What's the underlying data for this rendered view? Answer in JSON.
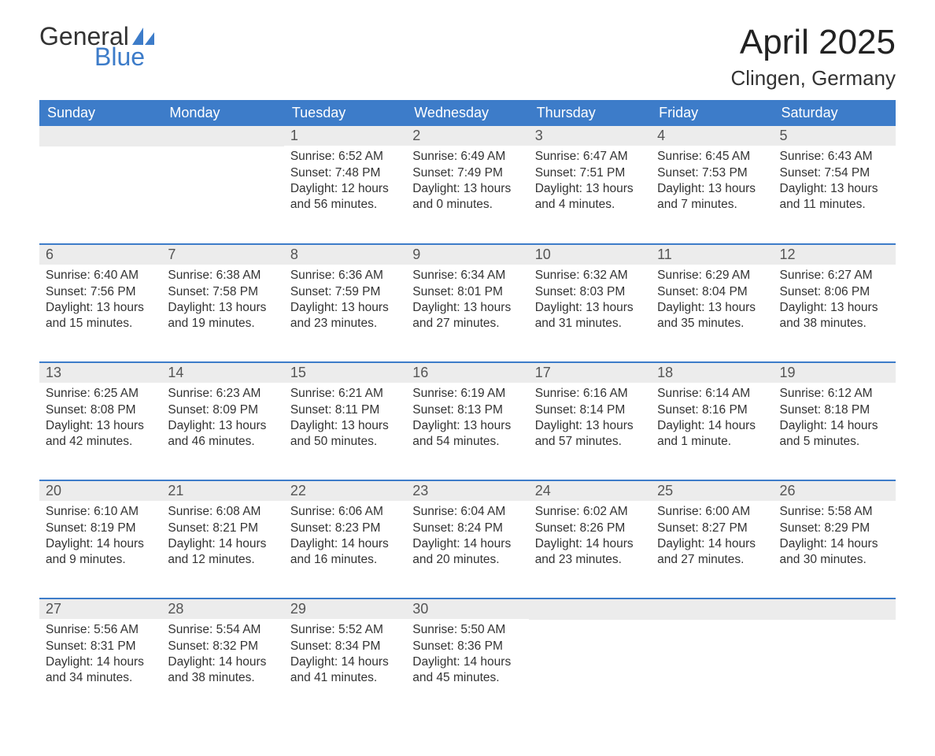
{
  "colors": {
    "header_bg": "#3d7cc9",
    "header_text": "#ffffff",
    "daynum_bg": "#ececec",
    "daynum_text": "#555555",
    "row_border": "#3d7cc9",
    "body_text": "#333333",
    "logo_dark": "#333333",
    "logo_blue": "#3d7cc9",
    "page_bg": "#ffffff"
  },
  "typography": {
    "title_fontsize": 44,
    "location_fontsize": 26,
    "header_fontsize": 18,
    "daynum_fontsize": 18,
    "body_fontsize": 15.5,
    "font_family": "Arial, Helvetica, sans-serif"
  },
  "logo": {
    "line1": "General",
    "line2": "Blue"
  },
  "title": "April 2025",
  "location": "Clingen, Germany",
  "weekdays": [
    "Sunday",
    "Monday",
    "Tuesday",
    "Wednesday",
    "Thursday",
    "Friday",
    "Saturday"
  ],
  "layout": {
    "columns": 7,
    "rows": 5,
    "leading_blanks": 2,
    "trailing_blanks": 3
  },
  "days": [
    {
      "n": 1,
      "sunrise": "6:52 AM",
      "sunset": "7:48 PM",
      "daylight": "12 hours and 56 minutes."
    },
    {
      "n": 2,
      "sunrise": "6:49 AM",
      "sunset": "7:49 PM",
      "daylight": "13 hours and 0 minutes."
    },
    {
      "n": 3,
      "sunrise": "6:47 AM",
      "sunset": "7:51 PM",
      "daylight": "13 hours and 4 minutes."
    },
    {
      "n": 4,
      "sunrise": "6:45 AM",
      "sunset": "7:53 PM",
      "daylight": "13 hours and 7 minutes."
    },
    {
      "n": 5,
      "sunrise": "6:43 AM",
      "sunset": "7:54 PM",
      "daylight": "13 hours and 11 minutes."
    },
    {
      "n": 6,
      "sunrise": "6:40 AM",
      "sunset": "7:56 PM",
      "daylight": "13 hours and 15 minutes."
    },
    {
      "n": 7,
      "sunrise": "6:38 AM",
      "sunset": "7:58 PM",
      "daylight": "13 hours and 19 minutes."
    },
    {
      "n": 8,
      "sunrise": "6:36 AM",
      "sunset": "7:59 PM",
      "daylight": "13 hours and 23 minutes."
    },
    {
      "n": 9,
      "sunrise": "6:34 AM",
      "sunset": "8:01 PM",
      "daylight": "13 hours and 27 minutes."
    },
    {
      "n": 10,
      "sunrise": "6:32 AM",
      "sunset": "8:03 PM",
      "daylight": "13 hours and 31 minutes."
    },
    {
      "n": 11,
      "sunrise": "6:29 AM",
      "sunset": "8:04 PM",
      "daylight": "13 hours and 35 minutes."
    },
    {
      "n": 12,
      "sunrise": "6:27 AM",
      "sunset": "8:06 PM",
      "daylight": "13 hours and 38 minutes."
    },
    {
      "n": 13,
      "sunrise": "6:25 AM",
      "sunset": "8:08 PM",
      "daylight": "13 hours and 42 minutes."
    },
    {
      "n": 14,
      "sunrise": "6:23 AM",
      "sunset": "8:09 PM",
      "daylight": "13 hours and 46 minutes."
    },
    {
      "n": 15,
      "sunrise": "6:21 AM",
      "sunset": "8:11 PM",
      "daylight": "13 hours and 50 minutes."
    },
    {
      "n": 16,
      "sunrise": "6:19 AM",
      "sunset": "8:13 PM",
      "daylight": "13 hours and 54 minutes."
    },
    {
      "n": 17,
      "sunrise": "6:16 AM",
      "sunset": "8:14 PM",
      "daylight": "13 hours and 57 minutes."
    },
    {
      "n": 18,
      "sunrise": "6:14 AM",
      "sunset": "8:16 PM",
      "daylight": "14 hours and 1 minute."
    },
    {
      "n": 19,
      "sunrise": "6:12 AM",
      "sunset": "8:18 PM",
      "daylight": "14 hours and 5 minutes."
    },
    {
      "n": 20,
      "sunrise": "6:10 AM",
      "sunset": "8:19 PM",
      "daylight": "14 hours and 9 minutes."
    },
    {
      "n": 21,
      "sunrise": "6:08 AM",
      "sunset": "8:21 PM",
      "daylight": "14 hours and 12 minutes."
    },
    {
      "n": 22,
      "sunrise": "6:06 AM",
      "sunset": "8:23 PM",
      "daylight": "14 hours and 16 minutes."
    },
    {
      "n": 23,
      "sunrise": "6:04 AM",
      "sunset": "8:24 PM",
      "daylight": "14 hours and 20 minutes."
    },
    {
      "n": 24,
      "sunrise": "6:02 AM",
      "sunset": "8:26 PM",
      "daylight": "14 hours and 23 minutes."
    },
    {
      "n": 25,
      "sunrise": "6:00 AM",
      "sunset": "8:27 PM",
      "daylight": "14 hours and 27 minutes."
    },
    {
      "n": 26,
      "sunrise": "5:58 AM",
      "sunset": "8:29 PM",
      "daylight": "14 hours and 30 minutes."
    },
    {
      "n": 27,
      "sunrise": "5:56 AM",
      "sunset": "8:31 PM",
      "daylight": "14 hours and 34 minutes."
    },
    {
      "n": 28,
      "sunrise": "5:54 AM",
      "sunset": "8:32 PM",
      "daylight": "14 hours and 38 minutes."
    },
    {
      "n": 29,
      "sunrise": "5:52 AM",
      "sunset": "8:34 PM",
      "daylight": "14 hours and 41 minutes."
    },
    {
      "n": 30,
      "sunrise": "5:50 AM",
      "sunset": "8:36 PM",
      "daylight": "14 hours and 45 minutes."
    }
  ],
  "labels": {
    "sunrise_prefix": "Sunrise: ",
    "sunset_prefix": "Sunset: ",
    "daylight_prefix": "Daylight: "
  }
}
